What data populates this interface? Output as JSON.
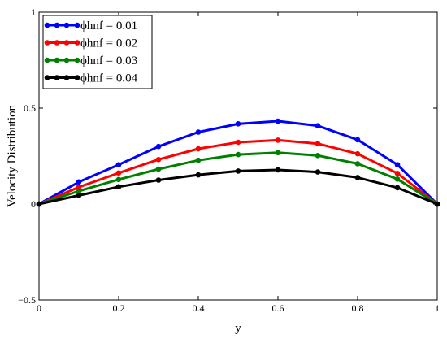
{
  "chart_data": {
    "type": "line",
    "title": "",
    "xlabel": "y",
    "ylabel": "Velocity  Distribution",
    "xlim": [
      0,
      1
    ],
    "ylim": [
      -0.5,
      1
    ],
    "xticks": [
      0,
      0.2,
      0.4,
      0.6,
      0.8,
      1
    ],
    "xtick_labels": [
      "0",
      "0.2",
      "0.4",
      "0.6",
      "0.8",
      "1"
    ],
    "yticks": [
      -0.5,
      0,
      0.5,
      1
    ],
    "ytick_labels": [
      "−0.5",
      "0",
      "0.5",
      "1"
    ],
    "grid": false,
    "legend_position": "top-left",
    "x": [
      0,
      0.1,
      0.2,
      0.3,
      0.4,
      0.5,
      0.6,
      0.7,
      0.8,
      0.9,
      1.0
    ],
    "series": [
      {
        "name": "ϕhnf = 0.01",
        "color": "#0000ff",
        "values": [
          0,
          0.115,
          0.205,
          0.3,
          0.375,
          0.418,
          0.432,
          0.408,
          0.335,
          0.205,
          0
        ]
      },
      {
        "name": "ϕhnf = 0.02",
        "color": "#ff0000",
        "values": [
          0,
          0.088,
          0.162,
          0.232,
          0.288,
          0.322,
          0.333,
          0.315,
          0.262,
          0.16,
          0
        ]
      },
      {
        "name": "ϕhnf = 0.03",
        "color": "#008000",
        "values": [
          0,
          0.068,
          0.128,
          0.182,
          0.228,
          0.258,
          0.268,
          0.253,
          0.21,
          0.13,
          0
        ]
      },
      {
        "name": "ϕhnf = 0.04",
        "color": "#000000",
        "values": [
          0,
          0.045,
          0.09,
          0.125,
          0.152,
          0.172,
          0.178,
          0.167,
          0.138,
          0.085,
          0
        ]
      }
    ]
  }
}
